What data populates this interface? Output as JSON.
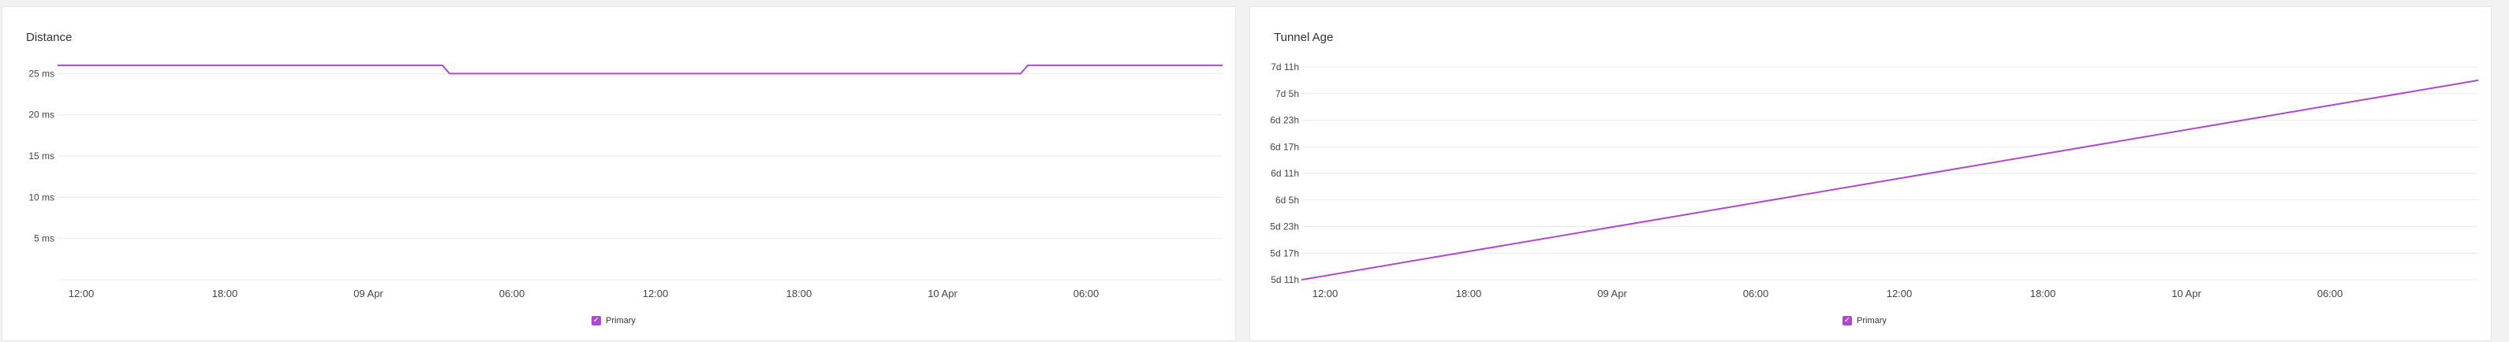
{
  "chart_data": [
    {
      "type": "line",
      "title": "Distance",
      "xlabel": "",
      "ylabel": "",
      "x_tick_labels": [
        "12:00",
        "18:00",
        "09 Apr",
        "06:00",
        "12:00",
        "18:00",
        "10 Apr",
        "06:00"
      ],
      "y_tick_labels": [
        "25 ms",
        "20 ms",
        "15 ms",
        "10 ms",
        "5 ms"
      ],
      "y_ticks": [
        25,
        20,
        15,
        10,
        5
      ],
      "ylim": [
        0,
        25.8
      ],
      "xlim": [
        -0.5,
        48.25
      ],
      "x_unit": "hours",
      "grid": true,
      "legend": "bottom-center",
      "series": [
        {
          "name": "Primary",
          "color": "#b047d1",
          "x": [
            -0.5,
            15.6,
            15.9,
            39.8,
            40.1,
            48.25
          ],
          "y": [
            26,
            26,
            25,
            25,
            26,
            26
          ]
        }
      ]
    },
    {
      "type": "line",
      "title": "Tunnel Age",
      "xlabel": "",
      "ylabel": "",
      "x_tick_labels": [
        "12:00",
        "18:00",
        "09 Apr",
        "06:00",
        "12:00",
        "18:00",
        "10 Apr",
        "06:00"
      ],
      "y_tick_labels": [
        "7d 11h",
        "7d 5h",
        "6d 23h",
        "6d 17h",
        "6d 11h",
        "6d 5h",
        "5d 23h",
        "5d 17h",
        "5d 11h"
      ],
      "y_ticks": [
        179,
        173,
        167,
        161,
        155,
        149,
        143,
        137,
        131
      ],
      "ylim": [
        131,
        179
      ],
      "xlim": [
        -0.93,
        47.84
      ],
      "x_unit": "hours",
      "grid": true,
      "legend": "bottom-center",
      "series": [
        {
          "name": "Primary",
          "color": "#b047d1",
          "x": [
            -0.93,
            47.84
          ],
          "y": [
            131,
            176
          ]
        }
      ]
    }
  ]
}
